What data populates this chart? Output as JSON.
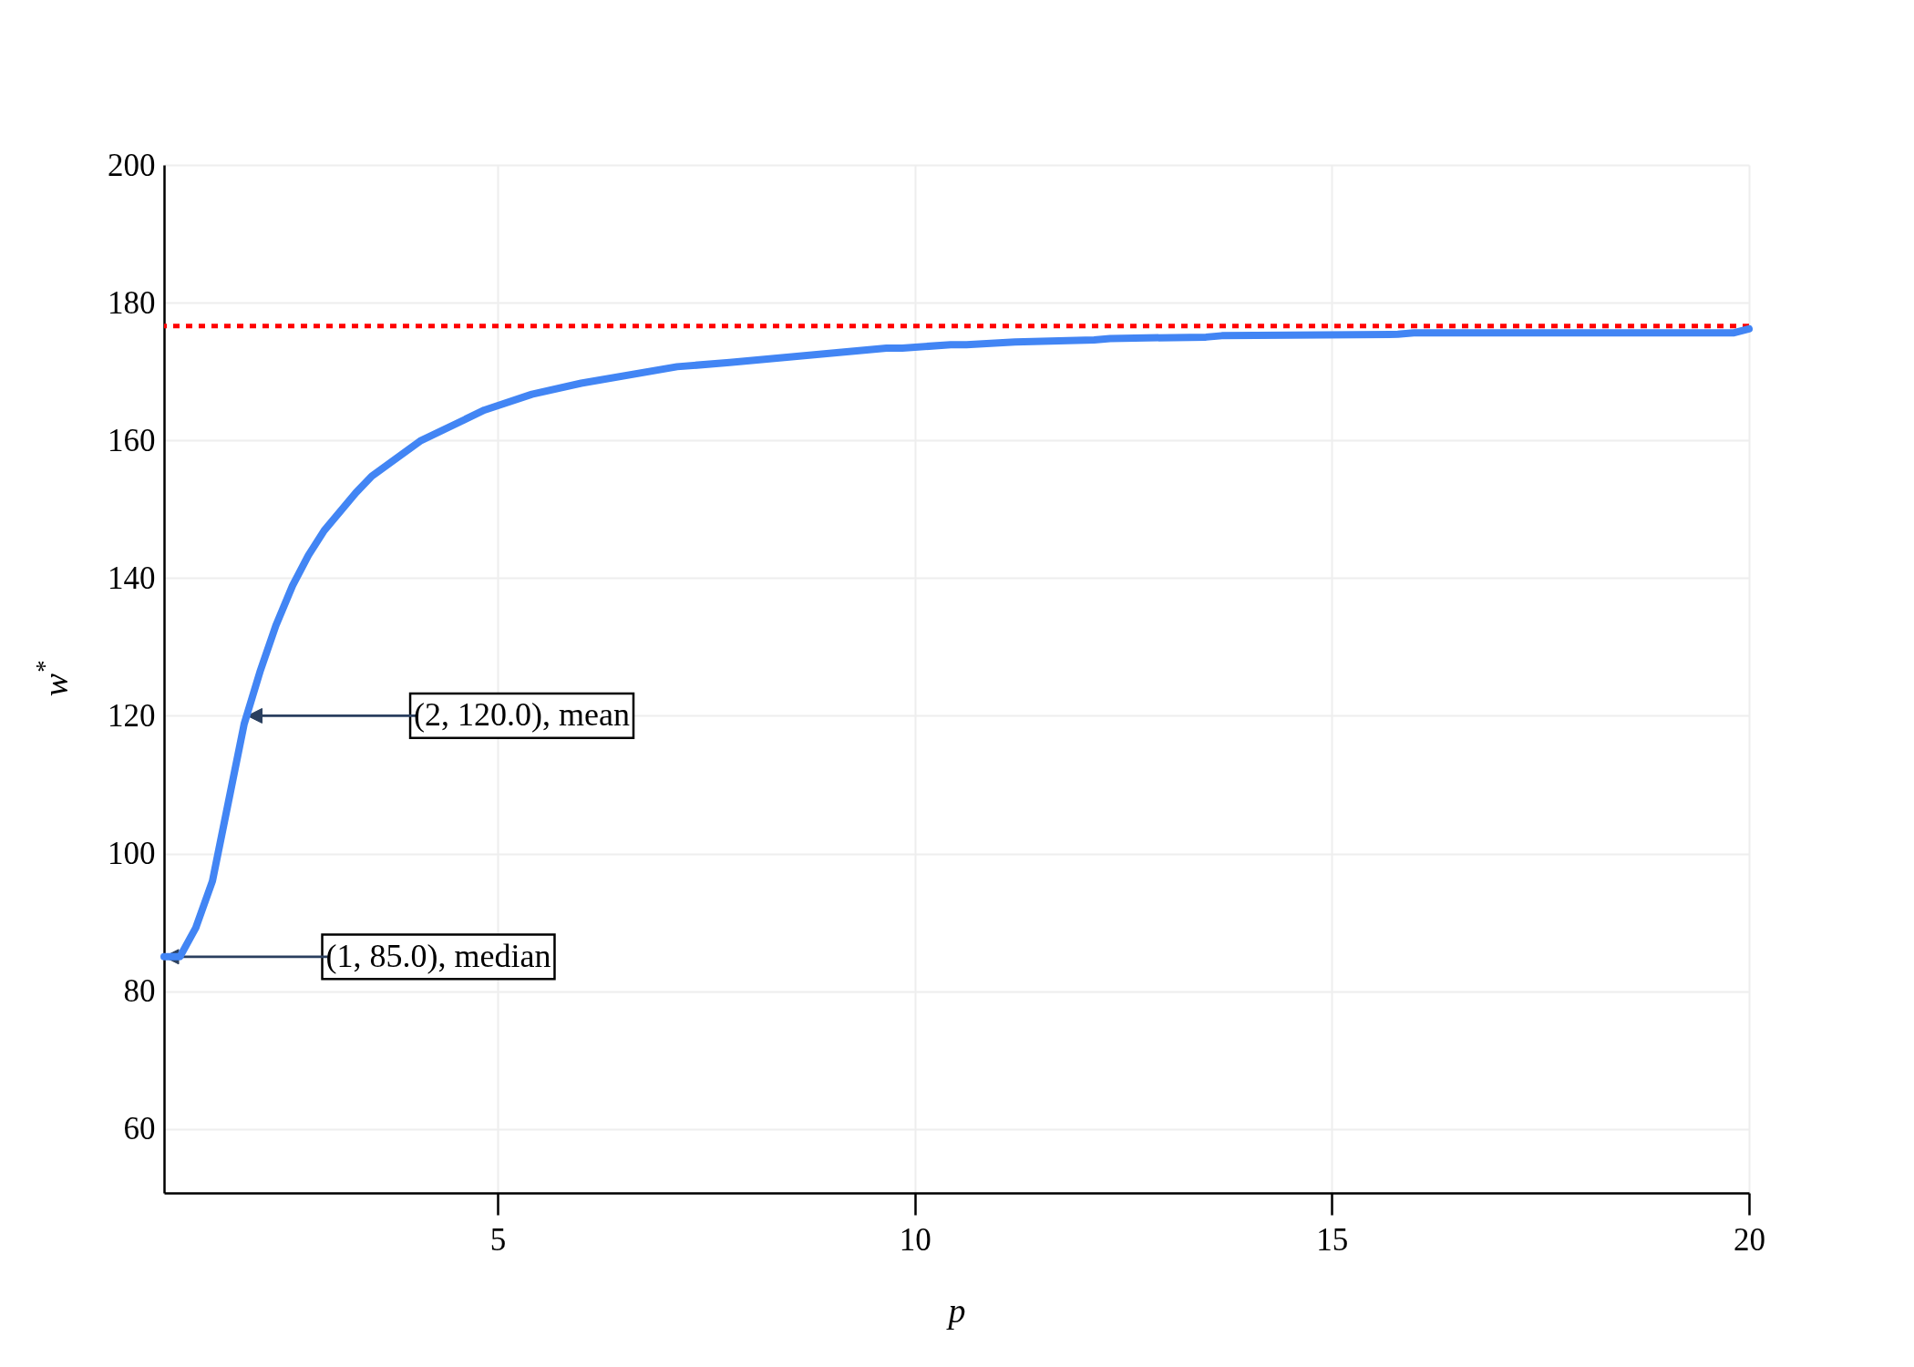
{
  "chart_data": {
    "type": "line",
    "xlabel": "p",
    "ylabel": "w$^{*}$",
    "series": [
      {
        "color": "#4285f4",
        "x": [
          1,
          1.19,
          1.38,
          1.58,
          1.77,
          1.96,
          2.15,
          2.34,
          2.54,
          2.73,
          2.92,
          3.3,
          3.49,
          4.07,
          4.84,
          5.41,
          6.0,
          7.15,
          7.78,
          9.66,
          9.85,
          10.43,
          10.62,
          11.2,
          12.15,
          12.34,
          13.49,
          13.68,
          15.79,
          15.98,
          19.81,
          20
        ],
        "values": [
          85,
          85,
          89.2,
          96,
          107.4,
          118.8,
          126.4,
          133.1,
          138.9,
          143.3,
          146.9,
          152.4,
          154.8,
          159.9,
          164.4,
          166.7,
          168.3,
          170.7,
          171.3,
          173.4,
          173.4,
          173.9,
          173.9,
          174.3,
          174.6,
          174.8,
          175.0,
          175.2,
          175.4,
          175.6,
          175.6,
          176.2
        ]
      }
    ],
    "xlim": [
      1,
      20
    ],
    "xticks": [
      5,
      10,
      15,
      20
    ],
    "ylim": [
      50.7,
      200
    ],
    "yticks": [
      60,
      80,
      100,
      120,
      140,
      160,
      180,
      200
    ],
    "grid": true,
    "ref_lines": [
      {
        "axis": "y",
        "value": 176.6,
        "color": "#ff0000",
        "line_style": "dotted"
      }
    ],
    "annotations": [
      {
        "text": "(2, 120.0), mean",
        "x": 2,
        "y": 120
      },
      {
        "text": "(1, 85.0), median",
        "x": 1,
        "y": 85
      }
    ]
  }
}
